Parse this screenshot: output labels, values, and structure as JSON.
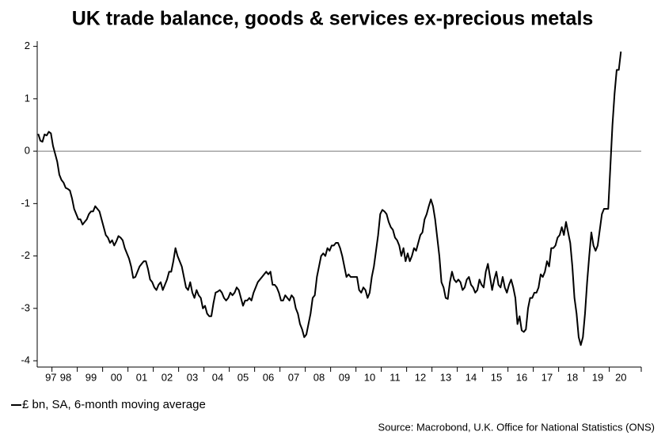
{
  "chart_data": {
    "type": "line",
    "title": "UK trade balance, goods & services ex-precious metals",
    "source": "Source: Macrobond, U.K. Office for National Statistics (ONS)",
    "categories": [
      null,
      null,
      null,
      null,
      null,
      null,
      "97",
      null,
      null,
      null,
      null,
      null,
      null,
      "98",
      null,
      null,
      null,
      null,
      null,
      null,
      null,
      null,
      null,
      null,
      null,
      "99",
      null,
      null,
      null,
      null,
      null,
      null,
      null,
      null,
      null,
      null,
      null,
      "00",
      null,
      null,
      null,
      null,
      null,
      null,
      null,
      null,
      null,
      null,
      null,
      "01",
      null,
      null,
      null,
      null,
      null,
      null,
      null,
      null,
      null,
      null,
      null,
      "02",
      null,
      null,
      null,
      null,
      null,
      null,
      null,
      null,
      null,
      null,
      null,
      "03",
      null,
      null,
      null,
      null,
      null,
      null,
      null,
      null,
      null,
      null,
      null,
      "04",
      null,
      null,
      null,
      null,
      null,
      null,
      null,
      null,
      null,
      null,
      null,
      "05",
      null,
      null,
      null,
      null,
      null,
      null,
      null,
      null,
      null,
      null,
      null,
      "06",
      null,
      null,
      null,
      null,
      null,
      null,
      null,
      null,
      null,
      null,
      null,
      "07",
      null,
      null,
      null,
      null,
      null,
      null,
      null,
      null,
      null,
      null,
      null,
      "08",
      null,
      null,
      null,
      null,
      null,
      null,
      null,
      null,
      null,
      null,
      null,
      "09",
      null,
      null,
      null,
      null,
      null,
      null,
      null,
      null,
      null,
      null,
      null,
      "10",
      null,
      null,
      null,
      null,
      null,
      null,
      null,
      null,
      null,
      null,
      null,
      "11",
      null,
      null,
      null,
      null,
      null,
      null,
      null,
      null,
      null,
      null,
      null,
      "12",
      null,
      null,
      null,
      null,
      null,
      null,
      null,
      null,
      null,
      null,
      null,
      "13",
      null,
      null,
      null,
      null,
      null,
      null,
      null,
      null,
      null,
      null,
      null,
      "14",
      null,
      null,
      null,
      null,
      null,
      null,
      null,
      null,
      null,
      null,
      null,
      "15",
      null,
      null,
      null,
      null,
      null,
      null,
      null,
      null,
      null,
      null,
      null,
      "16",
      null,
      null,
      null,
      null,
      null,
      null,
      null,
      null,
      null,
      null,
      null,
      "17",
      null,
      null,
      null,
      null,
      null,
      null,
      null,
      null,
      null,
      null,
      null,
      "18",
      null,
      null,
      null,
      null,
      null,
      null,
      null,
      null,
      null,
      null,
      null,
      "19",
      null,
      null,
      null,
      null,
      null,
      null,
      null,
      null,
      null,
      null,
      "20"
    ],
    "series": [
      {
        "name": "£ bn, SA, 6-month moving average",
        "color": "#000000",
        "values": [
          0.33,
          0.2,
          0.18,
          0.32,
          0.3,
          0.37,
          0.34,
          0.1,
          -0.05,
          -0.2,
          -0.45,
          -0.55,
          -0.6,
          -0.7,
          -0.72,
          -0.75,
          -0.9,
          -1.1,
          -1.2,
          -1.3,
          -1.3,
          -1.4,
          -1.35,
          -1.3,
          -1.2,
          -1.15,
          -1.15,
          -1.05,
          -1.1,
          -1.15,
          -1.3,
          -1.45,
          -1.6,
          -1.65,
          -1.75,
          -1.7,
          -1.8,
          -1.72,
          -1.62,
          -1.65,
          -1.7,
          -1.85,
          -1.95,
          -2.05,
          -2.2,
          -2.42,
          -2.4,
          -2.3,
          -2.2,
          -2.15,
          -2.1,
          -2.1,
          -2.25,
          -2.45,
          -2.5,
          -2.6,
          -2.65,
          -2.55,
          -2.5,
          -2.65,
          -2.55,
          -2.45,
          -2.3,
          -2.3,
          -2.1,
          -1.85,
          -2.0,
          -2.1,
          -2.2,
          -2.4,
          -2.6,
          -2.65,
          -2.5,
          -2.7,
          -2.8,
          -2.65,
          -2.75,
          -2.8,
          -3.0,
          -2.95,
          -3.1,
          -3.15,
          -3.15,
          -2.9,
          -2.7,
          -2.68,
          -2.65,
          -2.7,
          -2.8,
          -2.85,
          -2.8,
          -2.7,
          -2.75,
          -2.7,
          -2.6,
          -2.65,
          -2.8,
          -2.95,
          -2.85,
          -2.85,
          -2.8,
          -2.85,
          -2.7,
          -2.6,
          -2.5,
          -2.45,
          -2.4,
          -2.35,
          -2.3,
          -2.35,
          -2.3,
          -2.55,
          -2.55,
          -2.6,
          -2.7,
          -2.85,
          -2.85,
          -2.75,
          -2.8,
          -2.85,
          -2.75,
          -2.8,
          -3.0,
          -3.1,
          -3.3,
          -3.4,
          -3.55,
          -3.5,
          -3.3,
          -3.1,
          -2.8,
          -2.75,
          -2.4,
          -2.2,
          -2.0,
          -1.95,
          -2.0,
          -1.85,
          -1.9,
          -1.8,
          -1.8,
          -1.75,
          -1.75,
          -1.85,
          -2.0,
          -2.2,
          -2.4,
          -2.35,
          -2.4,
          -2.4,
          -2.4,
          -2.4,
          -2.65,
          -2.7,
          -2.6,
          -2.65,
          -2.8,
          -2.7,
          -2.4,
          -2.2,
          -1.9,
          -1.6,
          -1.2,
          -1.12,
          -1.15,
          -1.2,
          -1.35,
          -1.45,
          -1.5,
          -1.65,
          -1.7,
          -1.8,
          -2.0,
          -1.85,
          -2.1,
          -1.95,
          -2.1,
          -2.0,
          -1.85,
          -1.9,
          -1.75,
          -1.6,
          -1.55,
          -1.3,
          -1.2,
          -1.05,
          -0.92,
          -1.05,
          -1.3,
          -1.65,
          -2.0,
          -2.5,
          -2.6,
          -2.8,
          -2.82,
          -2.5,
          -2.3,
          -2.45,
          -2.5,
          -2.45,
          -2.5,
          -2.65,
          -2.6,
          -2.45,
          -2.4,
          -2.55,
          -2.6,
          -2.7,
          -2.65,
          -2.45,
          -2.55,
          -2.6,
          -2.3,
          -2.15,
          -2.4,
          -2.65,
          -2.45,
          -2.3,
          -2.55,
          -2.6,
          -2.4,
          -2.6,
          -2.7,
          -2.55,
          -2.45,
          -2.6,
          -2.8,
          -3.3,
          -3.15,
          -3.42,
          -3.45,
          -3.4,
          -3.0,
          -2.8,
          -2.8,
          -2.7,
          -2.7,
          -2.6,
          -2.35,
          -2.4,
          -2.3,
          -2.1,
          -2.2,
          -1.85,
          -1.85,
          -1.8,
          -1.65,
          -1.6,
          -1.45,
          -1.6,
          -1.35,
          -1.55,
          -1.75,
          -2.2,
          -2.8,
          -3.1,
          -3.55,
          -3.7,
          -3.55,
          -3.1,
          -2.5,
          -2.0,
          -1.55,
          -1.8,
          -1.9,
          -1.8,
          -1.5,
          -1.2,
          -1.1,
          -1.1,
          -1.1,
          -0.3,
          0.5,
          1.1,
          1.55,
          1.55,
          1.9
        ]
      }
    ],
    "ylim": [
      -4.12,
      2.1
    ],
    "yticks": [
      -4,
      -3,
      -2,
      -1,
      0,
      1,
      2
    ],
    "legend": "bottom-left"
  }
}
